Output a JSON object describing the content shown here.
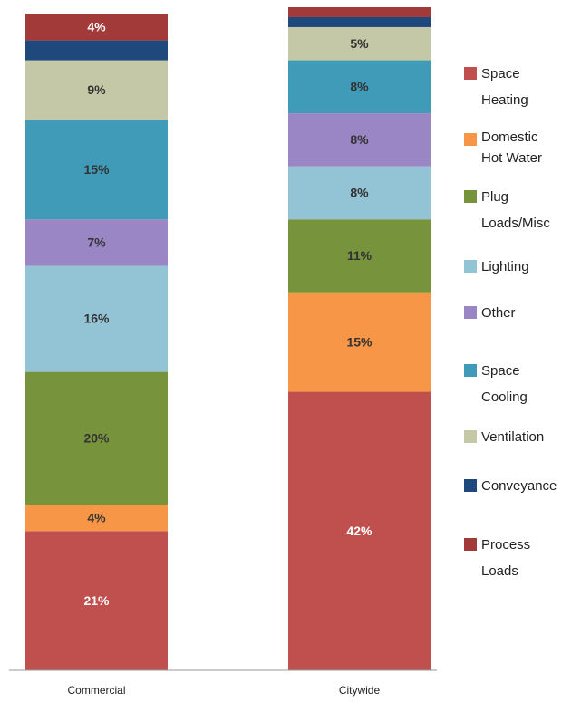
{
  "chart_data": {
    "type": "stacked_bar",
    "categories": [
      "Commercial",
      "Citywide"
    ],
    "series": [
      {
        "name": "Space Heating",
        "color": "#c0504d",
        "values": [
          21,
          42
        ],
        "value_labels": [
          "21%",
          "42%"
        ]
      },
      {
        "name": "Domestic Hot Water",
        "color": "#f79646",
        "values": [
          4,
          15
        ],
        "value_labels": [
          "4%",
          "15%"
        ]
      },
      {
        "name": "Plug Loads/Misc",
        "color": "#77933c",
        "values": [
          20,
          11
        ],
        "value_labels": [
          "20%",
          "11%"
        ]
      },
      {
        "name": "Lighting",
        "color": "#93c4d6",
        "values": [
          16,
          8
        ],
        "value_labels": [
          "16%",
          "8%"
        ]
      },
      {
        "name": "Other",
        "color": "#9a86c4",
        "values": [
          7,
          8
        ],
        "value_labels": [
          "7%",
          "8%"
        ]
      },
      {
        "name": "Space Cooling",
        "color": "#3f9bb8",
        "values": [
          15,
          8
        ],
        "value_labels": [
          "15%",
          "8%"
        ]
      },
      {
        "name": "Ventilation",
        "color": "#c4c8a6",
        "values": [
          9,
          5
        ],
        "value_labels": [
          "9%",
          "5%"
        ]
      },
      {
        "name": "Conveyance",
        "color": "#1f497d",
        "values": [
          3,
          1.5
        ],
        "value_labels": [
          null,
          null
        ]
      },
      {
        "name": "Process Loads",
        "color": "#a33a3a",
        "values": [
          4,
          1.5
        ],
        "value_labels": [
          "4%",
          null
        ]
      }
    ],
    "ylim": [
      0,
      100
    ]
  }
}
